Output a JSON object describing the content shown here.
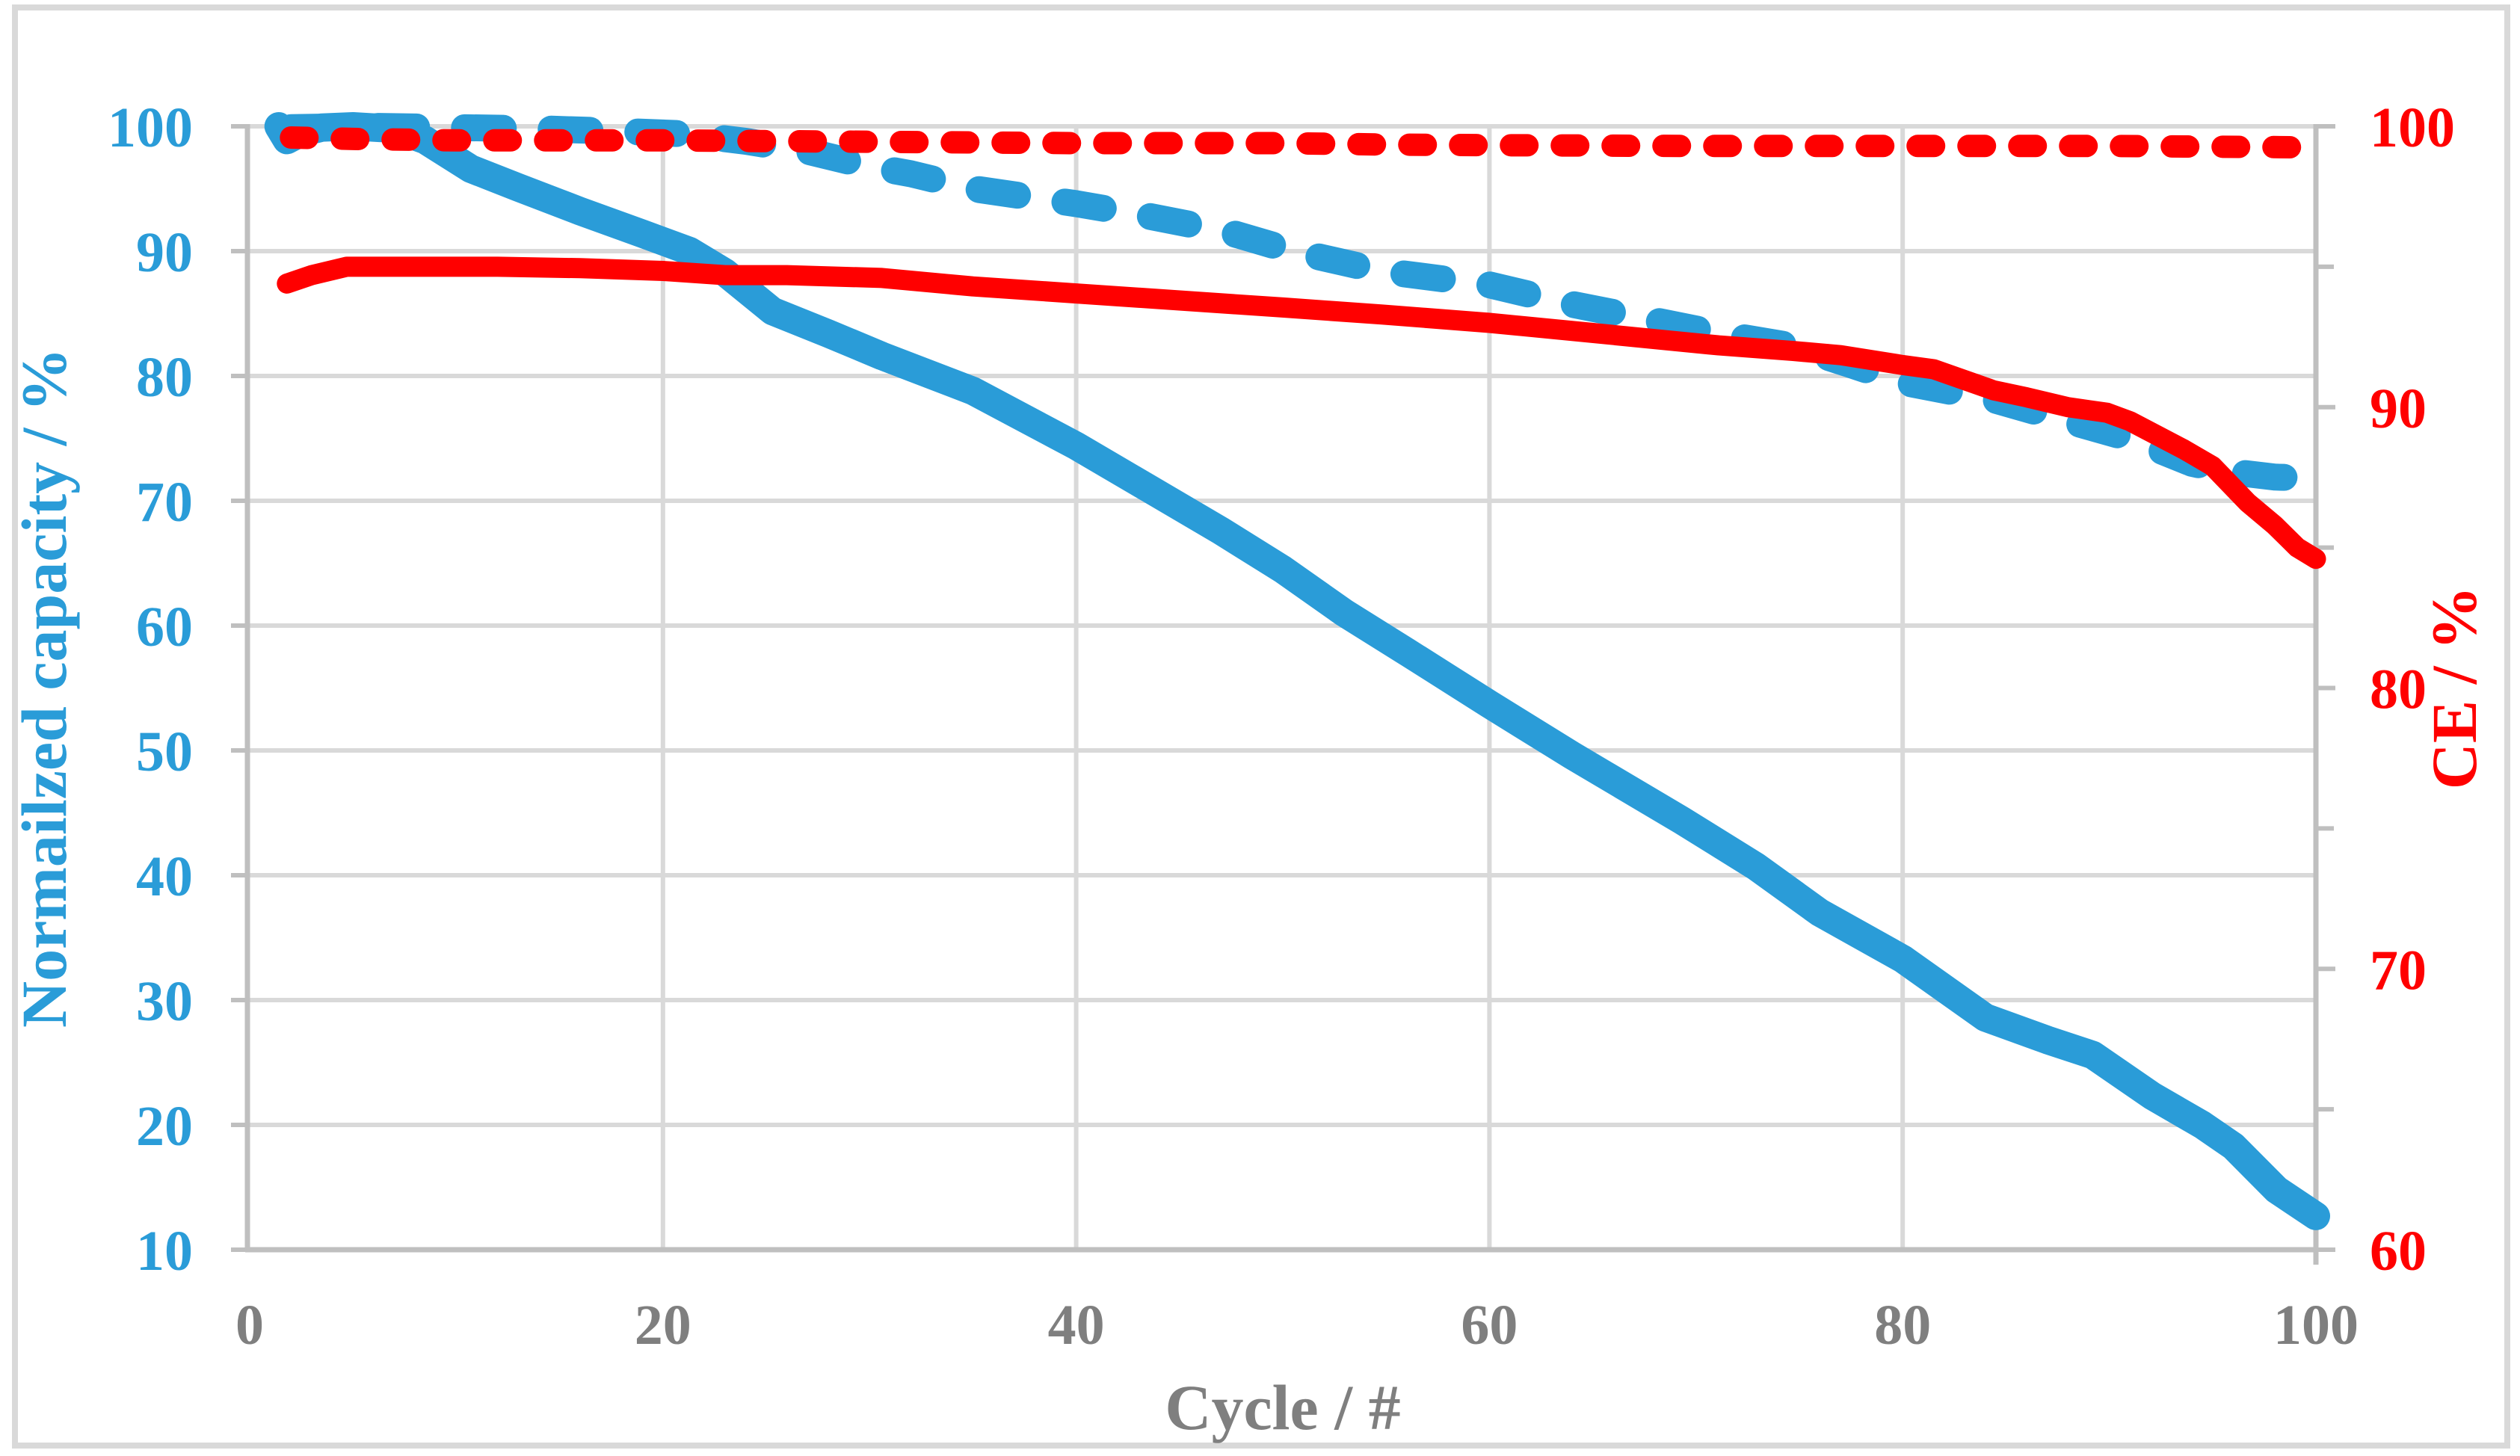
{
  "chart_data": {
    "type": "line",
    "title": "",
    "xlabel": "Cycle / #",
    "ylabel_left": "Normailzed capacity / %",
    "ylabel_right": "CE / %",
    "x_range": [
      0,
      100
    ],
    "x_ticks": [
      0,
      20,
      40,
      60,
      80,
      100
    ],
    "y_left_range": [
      10,
      100
    ],
    "y_left_ticks": [
      10,
      20,
      30,
      40,
      50,
      60,
      70,
      80,
      90,
      100
    ],
    "y_right_range": [
      60,
      100
    ],
    "y_right_ticks": [
      60,
      70,
      80,
      90,
      100
    ],
    "y_right_minor_ticks": [
      65,
      75,
      85,
      95
    ],
    "grid": true,
    "legend_position": "none",
    "colors": {
      "blue": "#2A9CD8",
      "red": "#FF0000",
      "gray_text": "#7F7F7F",
      "gridline": "#D9D9D9",
      "axis_line": "#BFBFBF",
      "border": "#D9D9D9",
      "background": "#FFFFFF"
    },
    "series": [
      {
        "name": "capacity-dashed",
        "axis": "left",
        "style": "dashed",
        "color": "#2A9CD8",
        "width": 36,
        "dash": [
          52,
          64
        ],
        "points": [
          [
            2,
            99.9
          ],
          [
            6,
            100
          ],
          [
            10,
            99.9
          ],
          [
            14,
            99.8
          ],
          [
            18,
            99.6
          ],
          [
            21,
            99.4
          ],
          [
            24,
            98.8
          ],
          [
            27,
            98.0
          ],
          [
            30,
            96.8
          ],
          [
            32,
            96.2
          ],
          [
            35,
            95.0
          ],
          [
            40,
            93.8
          ],
          [
            43.2,
            92.9
          ],
          [
            47.2,
            91.6
          ],
          [
            50.5,
            90.0
          ],
          [
            54.8,
            88.4
          ],
          [
            60,
            87.3
          ],
          [
            63.8,
            85.8
          ],
          [
            67.8,
            84.5
          ],
          [
            71.1,
            83.4
          ],
          [
            74.7,
            82.4
          ],
          [
            77.5,
            80.9
          ],
          [
            80,
            79.5
          ],
          [
            84.4,
            78.1
          ],
          [
            88,
            76.4
          ],
          [
            91,
            75.0
          ],
          [
            94,
            73.0
          ],
          [
            96,
            72.3
          ],
          [
            98,
            71.9
          ],
          [
            100,
            71.8
          ]
        ]
      },
      {
        "name": "capacity-solid",
        "axis": "left",
        "style": "solid",
        "color": "#2A9CD8",
        "width": 38,
        "dash": null,
        "points": [
          [
            1.4,
            100
          ],
          [
            1.8,
            98.9
          ],
          [
            2.5,
            99.5
          ],
          [
            3.5,
            99.9
          ],
          [
            5,
            100
          ],
          [
            7,
            99.8
          ],
          [
            8.5,
            98.9
          ],
          [
            10.7,
            96.6
          ],
          [
            13,
            95.1
          ],
          [
            16,
            93.2
          ],
          [
            19,
            91.4
          ],
          [
            21.3,
            90.0
          ],
          [
            23,
            88.3
          ],
          [
            25.3,
            85.2
          ],
          [
            28,
            83.4
          ],
          [
            30.6,
            81.6
          ],
          [
            35,
            78.8
          ],
          [
            40,
            74.4
          ],
          [
            43.3,
            71.2
          ],
          [
            47,
            67.6
          ],
          [
            50,
            64.5
          ],
          [
            53,
            61.0
          ],
          [
            56,
            57.9
          ],
          [
            60,
            53.7
          ],
          [
            64,
            49.6
          ],
          [
            69.3,
            44.4
          ],
          [
            72.9,
            40.7
          ],
          [
            76,
            37.0
          ],
          [
            80,
            33.3
          ],
          [
            84,
            28.6
          ],
          [
            87,
            26.8
          ],
          [
            89.2,
            25.6
          ],
          [
            92.1,
            22.3
          ],
          [
            94.5,
            20.0
          ],
          [
            96,
            18.3
          ],
          [
            98.1,
            14.8
          ],
          [
            100,
            12.7
          ]
        ]
      },
      {
        "name": "ce-dashed",
        "axis": "right",
        "style": "dashed",
        "color": "#FF0000",
        "width": 30,
        "dash": [
          22,
          46
        ],
        "points": [
          [
            2,
            99.6
          ],
          [
            5,
            99.55
          ],
          [
            10,
            99.5
          ],
          [
            20,
            99.5
          ],
          [
            30,
            99.45
          ],
          [
            40,
            99.4
          ],
          [
            50,
            99.4
          ],
          [
            55,
            99.35
          ],
          [
            60,
            99.33
          ],
          [
            70,
            99.3
          ],
          [
            80,
            99.3
          ],
          [
            90,
            99.3
          ],
          [
            100,
            99.25
          ]
        ]
      },
      {
        "name": "ce-solid",
        "axis": "right",
        "style": "solid",
        "color": "#FF0000",
        "width": 27,
        "dash": null,
        "points": [
          [
            1.8,
            94.4
          ],
          [
            3,
            94.7
          ],
          [
            4.7,
            95.0
          ],
          [
            8,
            95.0
          ],
          [
            12,
            95.0
          ],
          [
            16,
            94.95
          ],
          [
            20,
            94.85
          ],
          [
            23,
            94.7
          ],
          [
            26,
            94.7
          ],
          [
            30.6,
            94.6
          ],
          [
            35,
            94.3
          ],
          [
            40,
            94.05
          ],
          [
            45,
            93.8
          ],
          [
            50,
            93.55
          ],
          [
            54.8,
            93.3
          ],
          [
            60,
            93.0
          ],
          [
            65.6,
            92.6
          ],
          [
            71.1,
            92.2
          ],
          [
            74.7,
            92.0
          ],
          [
            77,
            91.85
          ],
          [
            80,
            91.5
          ],
          [
            81.5,
            91.35
          ],
          [
            84.4,
            90.6
          ],
          [
            86,
            90.35
          ],
          [
            88,
            90.0
          ],
          [
            89.9,
            89.8
          ],
          [
            91,
            89.5
          ],
          [
            93.6,
            88.5
          ],
          [
            95,
            87.9
          ],
          [
            96.7,
            86.6
          ],
          [
            98,
            85.8
          ],
          [
            99.1,
            85.0
          ],
          [
            100,
            84.6
          ]
        ]
      }
    ]
  }
}
